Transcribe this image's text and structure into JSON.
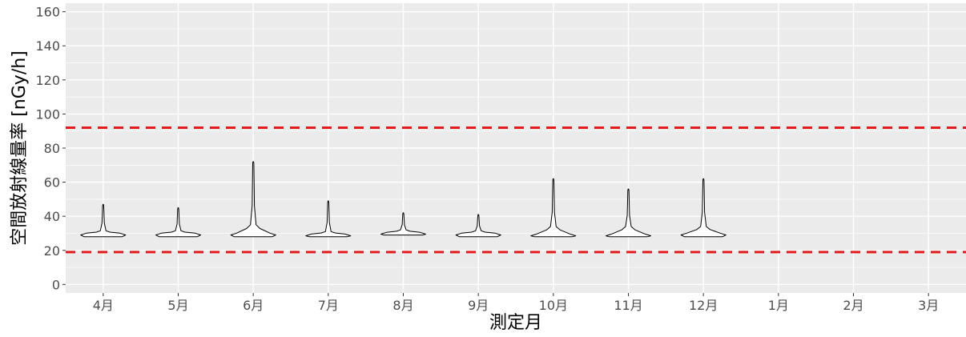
{
  "chart_data": {
    "type": "violin",
    "title": "",
    "xlabel": "測定月",
    "ylabel": "空間放射線量率 [nGy/h]",
    "categories": [
      "4月",
      "5月",
      "6月",
      "7月",
      "8月",
      "9月",
      "10月",
      "11月",
      "12月",
      "1月",
      "2月",
      "3月"
    ],
    "ylim": [
      -5,
      165
    ],
    "yticks": [
      0,
      20,
      40,
      60,
      80,
      100,
      120,
      140,
      160
    ],
    "grid": true,
    "reference_lines": [
      {
        "y": 92,
        "color": "#e41a1c",
        "style": "dashed"
      },
      {
        "y": 19,
        "color": "#e41a1c",
        "style": "dashed"
      }
    ],
    "distributions": [
      {
        "category": "4月",
        "min": 28,
        "max": 47,
        "mode": 29.5,
        "body_top": 31.5
      },
      {
        "category": "5月",
        "min": 28,
        "max": 45,
        "mode": 29.5,
        "body_top": 31.5
      },
      {
        "category": "6月",
        "min": 28,
        "max": 72,
        "mode": 29.5,
        "body_top": 35
      },
      {
        "category": "7月",
        "min": 28,
        "max": 49,
        "mode": 29,
        "body_top": 31
      },
      {
        "category": "8月",
        "min": 29,
        "max": 42,
        "mode": 30,
        "body_top": 32
      },
      {
        "category": "9月",
        "min": 28,
        "max": 41,
        "mode": 29.5,
        "body_top": 31.5
      },
      {
        "category": "10月",
        "min": 28,
        "max": 62,
        "mode": 29,
        "body_top": 34
      },
      {
        "category": "11月",
        "min": 28,
        "max": 56,
        "mode": 29,
        "body_top": 34
      },
      {
        "category": "12月",
        "min": 28,
        "max": 62,
        "mode": 29.5,
        "body_top": 34
      }
    ]
  },
  "style": {
    "panel_background": "#ebebeb",
    "grid_color": "#ffffff",
    "violin_fill": "#ffffff",
    "violin_stroke": "#000000"
  }
}
